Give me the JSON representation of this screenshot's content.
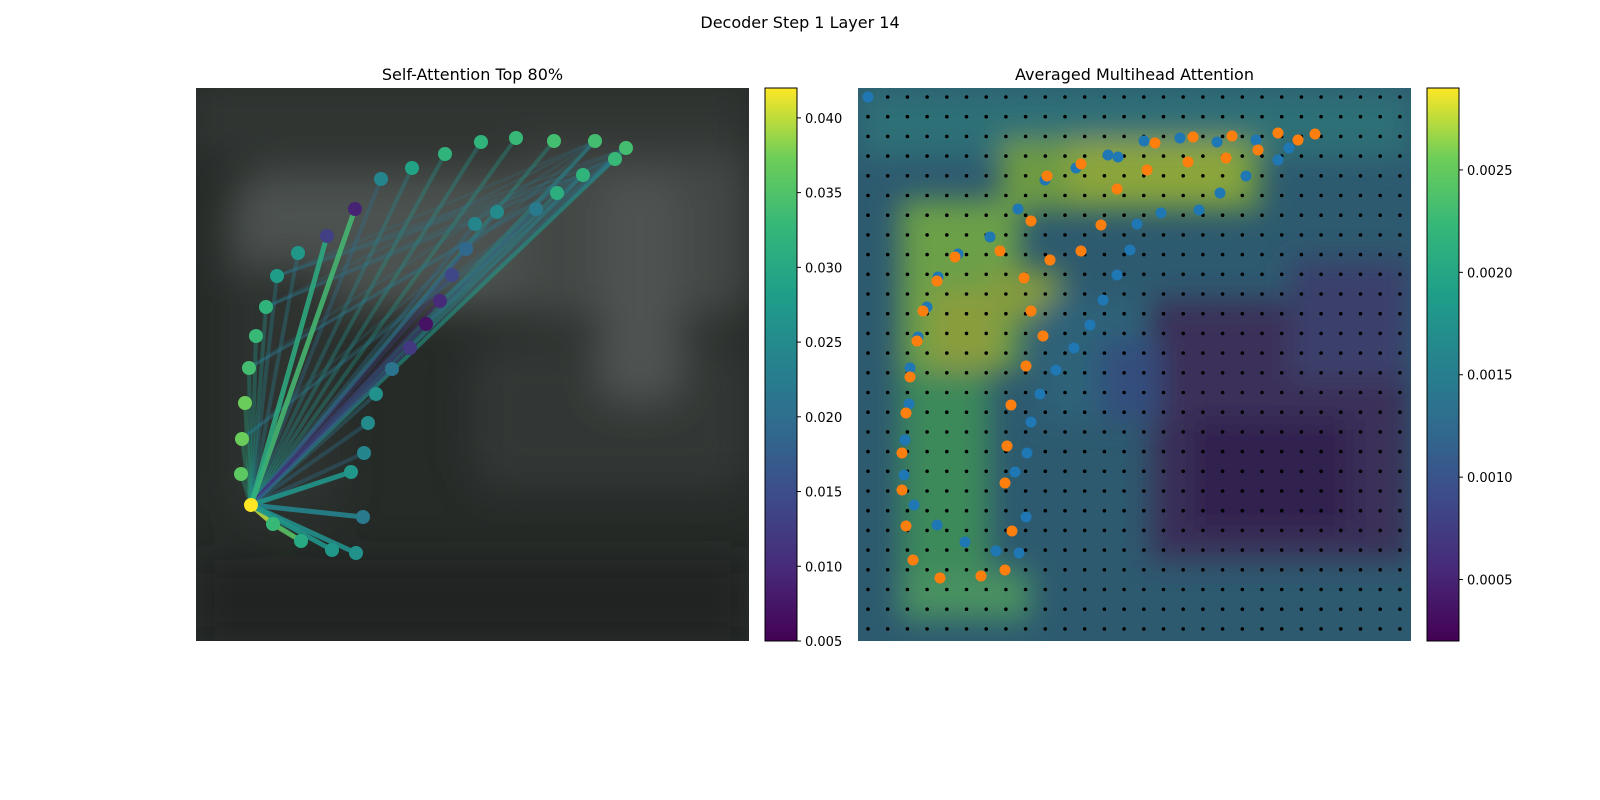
{
  "figure": {
    "suptitle": "Decoder Step 1 Layer 14"
  },
  "chart_data": [
    {
      "type": "scatter",
      "title": "Self-Attention Top 80%",
      "description_colors": {
        "cmap": "viridis",
        "background": "#20251f"
      },
      "colorbar": {
        "range": [
          0.005,
          0.042
        ],
        "ticks": [
          "0.005",
          "0.010",
          "0.015",
          "0.020",
          "0.025",
          "0.030",
          "0.035",
          "0.040"
        ]
      },
      "points": [
        {
          "x": 356,
          "y": 553,
          "v": 0.026
        },
        {
          "x": 332,
          "y": 550,
          "v": 0.027
        },
        {
          "x": 301,
          "y": 541,
          "v": 0.03
        },
        {
          "x": 273,
          "y": 524,
          "v": 0.033
        },
        {
          "x": 251,
          "y": 505,
          "v": 0.042
        },
        {
          "x": 241,
          "y": 474,
          "v": 0.036
        },
        {
          "x": 242,
          "y": 439,
          "v": 0.037
        },
        {
          "x": 245,
          "y": 403,
          "v": 0.037
        },
        {
          "x": 249,
          "y": 368,
          "v": 0.034
        },
        {
          "x": 256,
          "y": 336,
          "v": 0.033
        },
        {
          "x": 266,
          "y": 307,
          "v": 0.032
        },
        {
          "x": 277,
          "y": 276,
          "v": 0.028
        },
        {
          "x": 298,
          "y": 253,
          "v": 0.027
        },
        {
          "x": 327,
          "y": 236,
          "v": 0.013
        },
        {
          "x": 355,
          "y": 209,
          "v": 0.009
        },
        {
          "x": 381,
          "y": 179,
          "v": 0.024
        },
        {
          "x": 412,
          "y": 168,
          "v": 0.029
        },
        {
          "x": 445,
          "y": 154,
          "v": 0.032
        },
        {
          "x": 481,
          "y": 142,
          "v": 0.032
        },
        {
          "x": 516,
          "y": 138,
          "v": 0.033
        },
        {
          "x": 554,
          "y": 141,
          "v": 0.034
        },
        {
          "x": 595,
          "y": 141,
          "v": 0.034
        },
        {
          "x": 626,
          "y": 148,
          "v": 0.034
        },
        {
          "x": 615,
          "y": 159,
          "v": 0.033
        },
        {
          "x": 583,
          "y": 175,
          "v": 0.032
        },
        {
          "x": 557,
          "y": 193,
          "v": 0.031
        },
        {
          "x": 536,
          "y": 209,
          "v": 0.022
        },
        {
          "x": 497,
          "y": 212,
          "v": 0.025
        },
        {
          "x": 475,
          "y": 224,
          "v": 0.024
        },
        {
          "x": 466,
          "y": 249,
          "v": 0.019
        },
        {
          "x": 452,
          "y": 275,
          "v": 0.014
        },
        {
          "x": 440,
          "y": 301,
          "v": 0.01
        },
        {
          "x": 426,
          "y": 324,
          "v": 0.007
        },
        {
          "x": 410,
          "y": 348,
          "v": 0.012
        },
        {
          "x": 392,
          "y": 369,
          "v": 0.021
        },
        {
          "x": 376,
          "y": 394,
          "v": 0.026
        },
        {
          "x": 368,
          "y": 423,
          "v": 0.025
        },
        {
          "x": 364,
          "y": 453,
          "v": 0.024
        },
        {
          "x": 351,
          "y": 472,
          "v": 0.027
        },
        {
          "x": 363,
          "y": 517,
          "v": 0.022
        }
      ],
      "edges": [
        {
          "from": 4,
          "to": 3,
          "v": 0.04
        },
        {
          "from": 3,
          "to": 2,
          "v": 0.036
        },
        {
          "from": 4,
          "to": 14,
          "v": 0.034
        },
        {
          "from": 4,
          "to": 13,
          "v": 0.031
        },
        {
          "from": 4,
          "to": 38,
          "v": 0.027
        },
        {
          "from": 4,
          "to": 39,
          "v": 0.024
        },
        {
          "from": 4,
          "to": 0,
          "v": 0.026
        },
        {
          "from": 4,
          "to": 1,
          "v": 0.027
        }
      ]
    },
    {
      "type": "heatmap",
      "title": "Averaged Multihead Attention",
      "description_colors": {
        "cmap": "viridis"
      },
      "colorbar": {
        "range": [
          0.0002,
          0.0029
        ],
        "ticks": [
          "0.0005",
          "0.0010",
          "0.0015",
          "0.0020",
          "0.0025"
        ]
      },
      "blue_points": [
        [
          868,
          97
        ],
        [
          1144,
          141
        ],
        [
          1180,
          138
        ],
        [
          1217,
          142
        ],
        [
          1256,
          140
        ],
        [
          1289,
          148
        ],
        [
          1278,
          160
        ],
        [
          1246,
          176
        ],
        [
          1220,
          193
        ],
        [
          1199,
          210
        ],
        [
          1161,
          213
        ],
        [
          1137,
          224
        ],
        [
          1130,
          250
        ],
        [
          1117,
          275
        ],
        [
          1103,
          300
        ],
        [
          1090,
          325
        ],
        [
          1074,
          348
        ],
        [
          1056,
          370
        ],
        [
          1040,
          394
        ],
        [
          1031,
          422
        ],
        [
          1027,
          453
        ],
        [
          1015,
          472
        ],
        [
          1026,
          517
        ],
        [
          1019,
          553
        ],
        [
          996,
          551
        ],
        [
          965,
          542
        ],
        [
          937,
          525
        ],
        [
          914,
          505
        ],
        [
          904,
          475
        ],
        [
          905,
          440
        ],
        [
          909,
          404
        ],
        [
          910,
          368
        ],
        [
          918,
          337
        ],
        [
          927,
          307
        ],
        [
          938,
          277
        ],
        [
          958,
          254
        ],
        [
          990,
          237
        ],
        [
          1018,
          209
        ],
        [
          1045,
          180
        ],
        [
          1076,
          168
        ],
        [
          1108,
          155
        ],
        [
          1118,
          157
        ]
      ],
      "orange_points": [
        [
          1155,
          143
        ],
        [
          1193,
          137
        ],
        [
          1232,
          136
        ],
        [
          1278,
          133
        ],
        [
          1298,
          140
        ],
        [
          1315,
          134
        ],
        [
          1258,
          150
        ],
        [
          1226,
          158
        ],
        [
          1188,
          162
        ],
        [
          1147,
          170
        ],
        [
          1117,
          189
        ],
        [
          1101,
          225
        ],
        [
          1081,
          164
        ],
        [
          1047,
          176
        ],
        [
          1031,
          221
        ],
        [
          1000,
          251
        ],
        [
          955,
          257
        ],
        [
          1050,
          260
        ],
        [
          1081,
          251
        ],
        [
          1024,
          278
        ],
        [
          937,
          281
        ],
        [
          1031,
          311
        ],
        [
          923,
          311
        ],
        [
          1043,
          336
        ],
        [
          917,
          341
        ],
        [
          1026,
          366
        ],
        [
          910,
          377
        ],
        [
          1011,
          405
        ],
        [
          906,
          413
        ],
        [
          1007,
          446
        ],
        [
          902,
          453
        ],
        [
          1005,
          483
        ],
        [
          902,
          490
        ],
        [
          1012,
          531
        ],
        [
          906,
          526
        ],
        [
          1005,
          570
        ],
        [
          981,
          576
        ],
        [
          940,
          578
        ],
        [
          913,
          560
        ]
      ]
    }
  ]
}
